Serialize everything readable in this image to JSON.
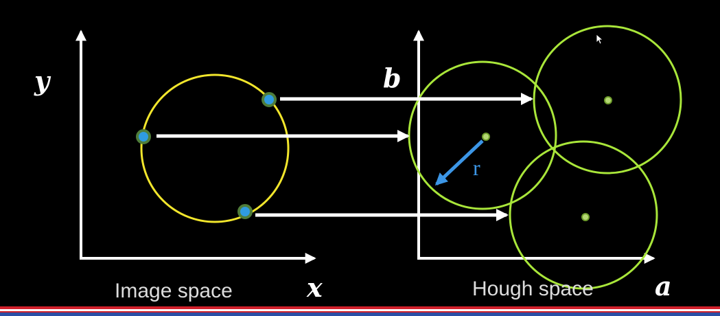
{
  "image_space": {
    "caption": "Image space",
    "x_axis_label": "x",
    "y_axis_label": "y"
  },
  "hough_space": {
    "caption": "Hough space",
    "x_axis_label": "a",
    "y_axis_label": "b",
    "radius_label": "r"
  },
  "colors": {
    "background": "#000000",
    "axis": "#ffffff",
    "image_circle": "#f2e62c",
    "hough_circle": "#a9e63a",
    "edge_point_fill": "#2f9be0",
    "edge_point_ring": "#4f7d3a",
    "radius_arrow": "#3c96e6",
    "center_dot": "#b5d873",
    "caption_text": "#dddddd",
    "footer_red": "#d0202a",
    "footer_blue": "#2b4fa6"
  }
}
